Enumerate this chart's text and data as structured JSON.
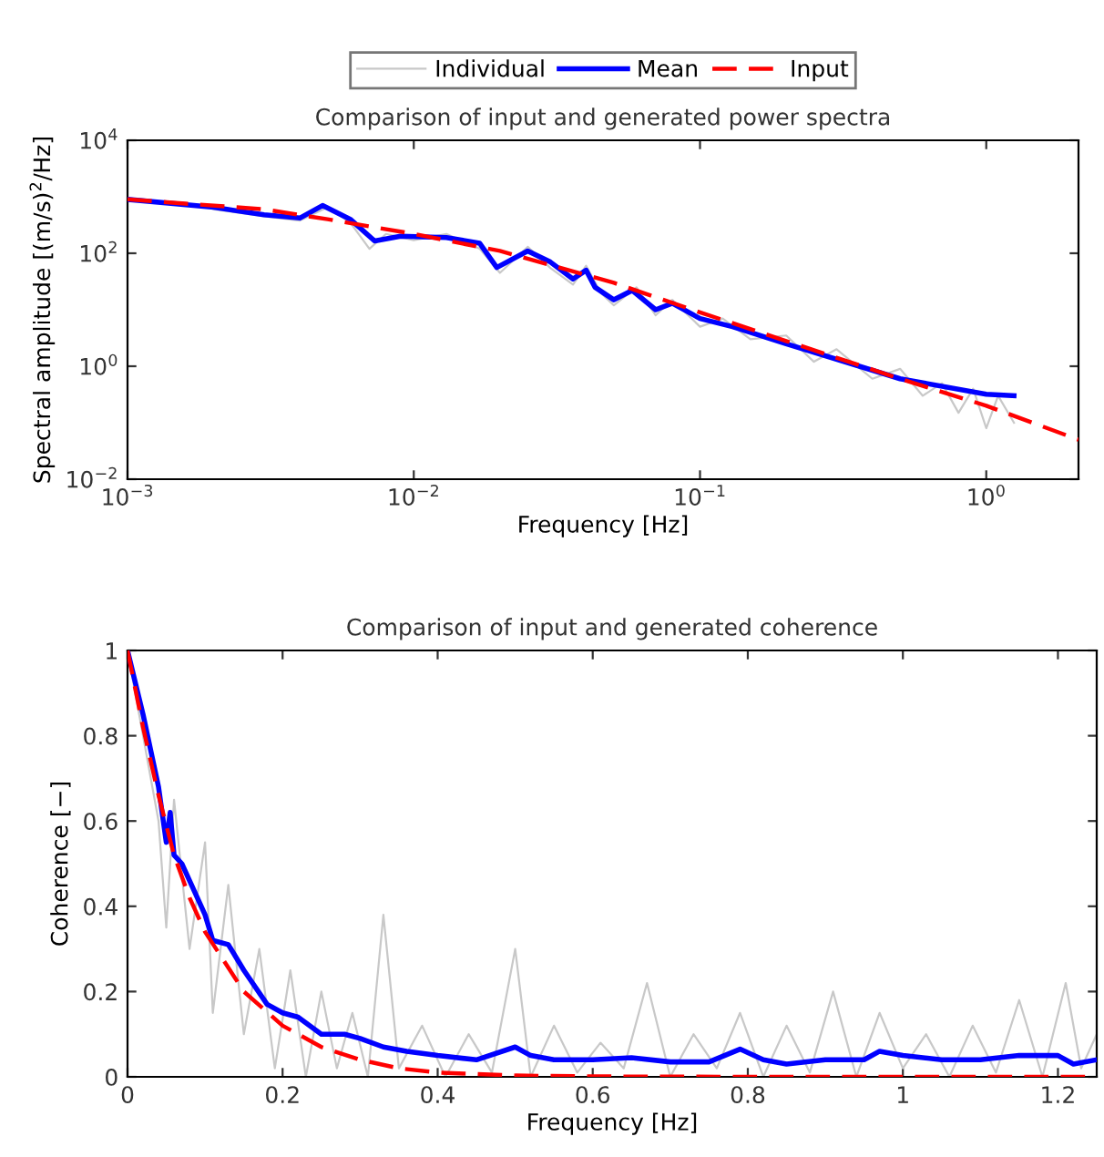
{
  "chart_data": [
    {
      "type": "line",
      "title": "Comparison of input and generated power spectra",
      "xlabel": "Frequency [Hz]",
      "ylabel": "Spectral amplitude [(m/s)$^{2}$/Hz]",
      "log": "xy",
      "xlim": [
        0.001,
        2.1
      ],
      "ylim": [
        0.01,
        10000
      ],
      "xticks": [
        {
          "value": 0.001,
          "label": "10$^{−3}$"
        },
        {
          "value": 0.01,
          "label": "10$^{−2}$"
        },
        {
          "value": 0.1,
          "label": "10$^{−1}$"
        },
        {
          "value": 1,
          "label": "10$^{0}$"
        }
      ],
      "yticks": [
        {
          "value": 0.01,
          "label": "10$^{−2}$"
        },
        {
          "value": 1,
          "label": "10$^{0}$"
        },
        {
          "value": 100,
          "label": "10$^{2}$"
        },
        {
          "value": 10000,
          "label": "10$^{4}$"
        }
      ],
      "legend": "top",
      "grid": false,
      "series": [
        {
          "name": "Individual",
          "color": "#c8c8c8",
          "x": [
            0.002,
            0.003,
            0.004,
            0.005,
            0.006,
            0.007,
            0.008,
            0.01,
            0.013,
            0.017,
            0.02,
            0.025,
            0.03,
            0.036,
            0.04,
            0.045,
            0.05,
            0.06,
            0.07,
            0.08,
            0.1,
            0.12,
            0.15,
            0.2,
            0.25,
            0.3,
            0.4,
            0.5,
            0.6,
            0.7,
            0.8,
            0.9,
            1.0,
            1.1,
            1.25
          ],
          "values": [
            600,
            450,
            380,
            650,
            350,
            120,
            220,
            170,
            220,
            120,
            45,
            130,
            55,
            28,
            60,
            20,
            12,
            25,
            8,
            15,
            5,
            7,
            3,
            3.5,
            1.2,
            2,
            0.6,
            0.9,
            0.3,
            0.5,
            0.15,
            0.4,
            0.08,
            0.3,
            0.1
          ]
        },
        {
          "name": "Mean",
          "color": "#0000ff",
          "x": [
            0.001,
            0.002,
            0.003,
            0.004,
            0.0048,
            0.006,
            0.0073,
            0.009,
            0.013,
            0.017,
            0.0195,
            0.025,
            0.03,
            0.036,
            0.04,
            0.043,
            0.05,
            0.058,
            0.07,
            0.08,
            0.1,
            0.13,
            0.2,
            0.5,
            1.0,
            1.25
          ],
          "values": [
            900,
            650,
            480,
            420,
            700,
            400,
            165,
            200,
            190,
            150,
            56,
            110,
            70,
            35,
            50,
            25,
            15,
            22,
            10,
            13,
            7,
            5,
            2.5,
            0.6,
            0.32,
            0.3
          ]
        },
        {
          "name": "Input",
          "color": "#ff0000",
          "line_style": "dashed",
          "x": [
            0.001,
            0.003,
            0.005,
            0.01,
            0.02,
            0.05,
            0.1,
            0.2,
            0.5,
            1.0,
            2.1
          ],
          "values": [
            900,
            600,
            400,
            220,
            110,
            30,
            9,
            2.8,
            0.6,
            0.2,
            0.05
          ]
        }
      ]
    },
    {
      "type": "line",
      "title": "Comparison of input and generated coherence",
      "xlabel": "Frequency [Hz]",
      "ylabel": "Coherence [−]",
      "xlim": [
        0,
        1.25
      ],
      "ylim": [
        0,
        1
      ],
      "xticks": [
        0,
        0.2,
        0.4,
        0.6,
        0.8,
        1,
        1.2
      ],
      "yticks": [
        0,
        0.2,
        0.4,
        0.6,
        0.8,
        1
      ],
      "legend": false,
      "grid": false,
      "series": [
        {
          "color": "#c8c8c8",
          "x": [
            0,
            0.02,
            0.04,
            0.05,
            0.06,
            0.08,
            0.1,
            0.11,
            0.13,
            0.15,
            0.17,
            0.19,
            0.21,
            0.23,
            0.25,
            0.27,
            0.29,
            0.31,
            0.33,
            0.35,
            0.38,
            0.41,
            0.44,
            0.47,
            0.5,
            0.52,
            0.55,
            0.58,
            0.61,
            0.64,
            0.67,
            0.7,
            0.73,
            0.76,
            0.79,
            0.82,
            0.85,
            0.88,
            0.91,
            0.94,
            0.97,
            1.0,
            1.03,
            1.06,
            1.09,
            1.12,
            1.15,
            1.18,
            1.21,
            1.23,
            1.25
          ],
          "values": [
            1,
            0.8,
            0.6,
            0.35,
            0.65,
            0.3,
            0.55,
            0.15,
            0.45,
            0.1,
            0.3,
            0.02,
            0.25,
            0.0,
            0.2,
            0.02,
            0.15,
            0.0,
            0.38,
            0.02,
            0.12,
            0.0,
            0.1,
            0.01,
            0.3,
            0.0,
            0.12,
            0.01,
            0.08,
            0.02,
            0.22,
            0.0,
            0.1,
            0.02,
            0.15,
            0.0,
            0.12,
            0.01,
            0.2,
            0.0,
            0.15,
            0.02,
            0.1,
            0.0,
            0.12,
            0.01,
            0.18,
            0.0,
            0.22,
            0.02,
            0.1
          ]
        },
        {
          "color": "#0000ff",
          "x": [
            0,
            0.02,
            0.04,
            0.05,
            0.055,
            0.06,
            0.07,
            0.08,
            0.1,
            0.11,
            0.13,
            0.15,
            0.18,
            0.2,
            0.22,
            0.25,
            0.28,
            0.3,
            0.33,
            0.36,
            0.4,
            0.45,
            0.5,
            0.52,
            0.55,
            0.6,
            0.65,
            0.7,
            0.75,
            0.79,
            0.82,
            0.85,
            0.9,
            0.95,
            0.97,
            1.0,
            1.05,
            1.1,
            1.15,
            1.2,
            1.22,
            1.25
          ],
          "values": [
            1,
            0.85,
            0.68,
            0.55,
            0.62,
            0.52,
            0.5,
            0.46,
            0.38,
            0.32,
            0.31,
            0.25,
            0.17,
            0.15,
            0.14,
            0.1,
            0.1,
            0.09,
            0.07,
            0.06,
            0.05,
            0.04,
            0.07,
            0.05,
            0.04,
            0.04,
            0.045,
            0.035,
            0.035,
            0.065,
            0.04,
            0.03,
            0.04,
            0.04,
            0.06,
            0.05,
            0.04,
            0.04,
            0.05,
            0.05,
            0.03,
            0.04
          ]
        },
        {
          "color": "#ff0000",
          "line_style": "dashed",
          "x": [
            0,
            0.02,
            0.04,
            0.06,
            0.08,
            0.1,
            0.15,
            0.2,
            0.25,
            0.3,
            0.35,
            0.4,
            0.5,
            0.6,
            0.8,
            1.25
          ],
          "values": [
            1,
            0.82,
            0.66,
            0.52,
            0.42,
            0.34,
            0.2,
            0.12,
            0.07,
            0.04,
            0.02,
            0.01,
            0.003,
            0.001,
            0,
            0
          ]
        }
      ]
    }
  ]
}
